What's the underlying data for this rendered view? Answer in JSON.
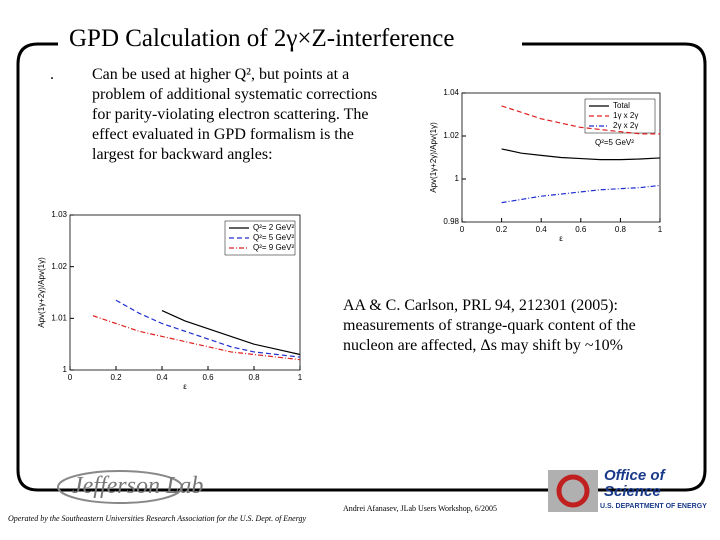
{
  "title": "GPD Calculation of 2γ×Z-interference",
  "bullet": {
    "marker": ".",
    "lines": [
      "Can be used at higher Q², but points at a",
      "problem of additional systematic corrections",
      "for parity-violating electron scattering. The",
      "effect evaluated in GPD formalism is the",
      "largest for backward angles:"
    ]
  },
  "reference": {
    "lines": [
      "AA & C. Carlson, PRL 94, 212301 (2005):",
      "measurements of strange-quark content of the",
      "nucleon are affected, Δs may shift by ~10%"
    ]
  },
  "footer": {
    "operated": "Operated by the Southeastern Universities Research Association for the U.S. Dept. of Energy",
    "author": "Andrei Afanasev, JLab Users Workshop, 6/2005",
    "lab_logo": "Jefferson Lab",
    "office_logo": [
      "Office of",
      "Science"
    ],
    "doe": "U.S. DEPARTMENT OF ENERGY"
  },
  "chart_data": [
    {
      "type": "line",
      "ylabel": "Apv(1γ+2γ)/Apv(1γ)",
      "xlabel": "ε",
      "annotation": "Q²=5 GeV²",
      "x": [
        0.2,
        0.3,
        0.4,
        0.5,
        0.6,
        0.7,
        0.8,
        0.9,
        1.0
      ],
      "xlim": [
        0,
        1
      ],
      "xticks": [
        0,
        0.2,
        0.4,
        0.6,
        0.8,
        1
      ],
      "ylim": [
        0.98,
        1.04
      ],
      "yticks": [
        0.98,
        1,
        1.02,
        1.04
      ],
      "legend": "upper right",
      "series": [
        {
          "name": "Total",
          "color": "#000000",
          "dash": "solid",
          "values": [
            1.014,
            1.012,
            1.011,
            1.01,
            1.0095,
            1.009,
            1.009,
            1.0093,
            1.0098
          ]
        },
        {
          "name": "1γ x 2γ",
          "color": "#e02020",
          "dash": "dashed",
          "values": [
            1.034,
            1.031,
            1.028,
            1.026,
            1.024,
            1.023,
            1.022,
            1.021,
            1.021
          ]
        },
        {
          "name": "2γ x 2γ",
          "color": "#2030d0",
          "dash": "dashdot",
          "values": [
            0.989,
            0.9905,
            0.992,
            0.993,
            0.994,
            0.995,
            0.9955,
            0.996,
            0.997
          ]
        }
      ]
    },
    {
      "type": "line",
      "ylabel": "Apv(1γ+2γ)/Apv(1γ)",
      "xlabel": "ε",
      "x": [
        0.1,
        0.2,
        0.3,
        0.4,
        0.5,
        0.6,
        0.7,
        0.8,
        0.9,
        1.0
      ],
      "xlim": [
        0,
        1
      ],
      "xticks": [
        0,
        0.2,
        0.4,
        0.6,
        0.8,
        1
      ],
      "ylim": [
        1,
        1.03
      ],
      "yticks": [
        1,
        1.01,
        1.02,
        1.03
      ],
      "legend": "upper right",
      "series": [
        {
          "name": "Q²= 2 GeV²",
          "color": "#000000",
          "dash": "solid",
          "values": [
            null,
            null,
            null,
            1.0115,
            1.0095,
            1.008,
            1.0065,
            1.005,
            1.004,
            1.003
          ]
        },
        {
          "name": "Q²= 5 GeV²",
          "color": "#2030d0",
          "dash": "dashed",
          "values": [
            null,
            1.0135,
            1.011,
            1.009,
            1.0075,
            1.006,
            1.0045,
            1.0035,
            1.003,
            1.0025
          ]
        },
        {
          "name": "Q²= 9 GeV²",
          "color": "#e02020",
          "dash": "dashdot",
          "values": [
            1.0105,
            1.009,
            1.0075,
            1.0065,
            1.0055,
            1.0045,
            1.0035,
            1.003,
            1.0025,
            1.002
          ]
        }
      ]
    }
  ]
}
